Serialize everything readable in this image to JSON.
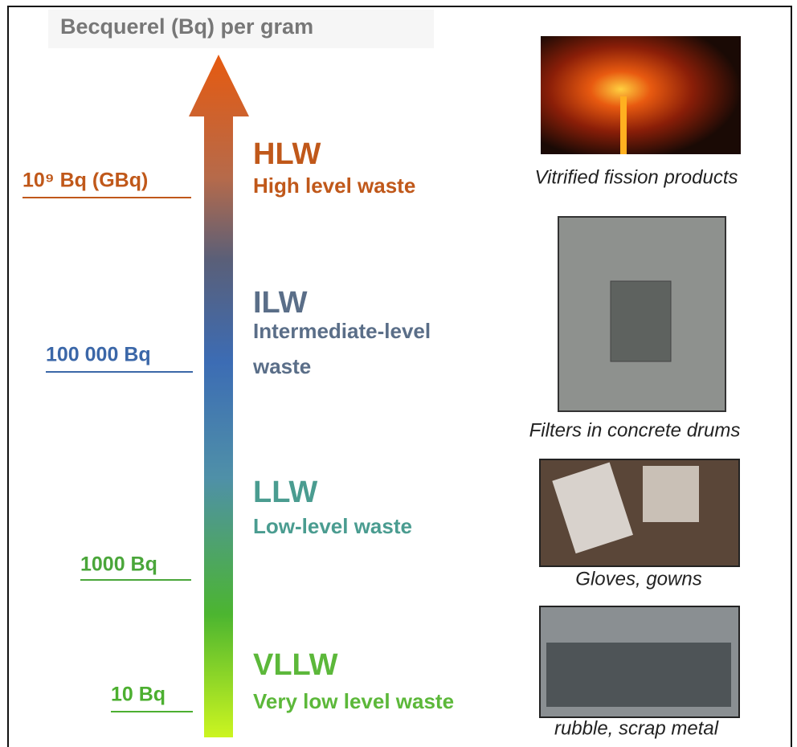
{
  "header": {
    "title": "Becquerel (Bq) per gram"
  },
  "thresholds": [
    "10⁹ Bq (GBq)",
    "100 000 Bq",
    "1000 Bq",
    "10 Bq"
  ],
  "levels": [
    {
      "code": "HLW",
      "name": [
        "High level waste"
      ]
    },
    {
      "code": "ILW",
      "name": [
        "Intermediate-level",
        "waste"
      ]
    },
    {
      "code": "LLW",
      "name": [
        "Low-level waste"
      ]
    },
    {
      "code": "VLLW",
      "name": [
        "Very low level waste"
      ]
    }
  ],
  "images": [
    {
      "caption": "Vitrified fission products"
    },
    {
      "caption": "Filters in concrete drums"
    },
    {
      "caption": "Gloves, gowns"
    },
    {
      "caption": "rubble, scrap metal"
    }
  ]
}
